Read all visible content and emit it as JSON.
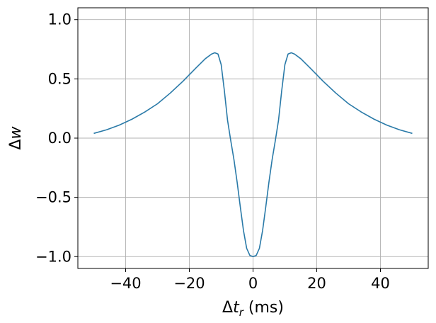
{
  "chart_data": {
    "type": "line",
    "title": "",
    "xlabel_parts": {
      "delta": "Δ",
      "var": "t",
      "sub": "r",
      "unit": " (ms)"
    },
    "ylabel_parts": {
      "delta": "Δ",
      "var": "w"
    },
    "xlim": [
      -55,
      55
    ],
    "ylim": [
      -1.1,
      1.1
    ],
    "xticks": [
      -40,
      -20,
      0,
      20,
      40
    ],
    "yticks": [
      -1.0,
      -0.5,
      0.0,
      0.5,
      1.0
    ],
    "xtick_labels": [
      "−40",
      "−20",
      "0",
      "20",
      "40"
    ],
    "ytick_labels": [
      "−1.0",
      "−0.5",
      "0.0",
      "0.5",
      "1.0"
    ],
    "grid": true,
    "series": [
      {
        "color": "#2a7aa8",
        "x": [
          -50,
          -46,
          -42,
          -38,
          -34,
          -30,
          -26,
          -22,
          -18,
          -15,
          -13,
          -12,
          -11,
          -10,
          -9,
          -8,
          -7,
          -6,
          -5,
          -4,
          -3,
          -2,
          -1,
          0,
          1,
          2,
          3,
          4,
          5,
          6,
          7,
          8,
          9,
          10,
          11,
          12,
          13,
          15,
          18,
          22,
          26,
          30,
          34,
          38,
          42,
          46,
          50
        ],
        "y": [
          0.04,
          0.07,
          0.11,
          0.16,
          0.22,
          0.29,
          0.38,
          0.48,
          0.59,
          0.67,
          0.71,
          0.72,
          0.71,
          0.62,
          0.4,
          0.15,
          -0.02,
          -0.18,
          -0.37,
          -0.58,
          -0.78,
          -0.93,
          -0.99,
          -1.0,
          -0.99,
          -0.93,
          -0.78,
          -0.58,
          -0.37,
          -0.18,
          -0.02,
          0.15,
          0.4,
          0.62,
          0.71,
          0.72,
          0.71,
          0.67,
          0.59,
          0.48,
          0.38,
          0.29,
          0.22,
          0.16,
          0.11,
          0.07,
          0.04
        ]
      }
    ]
  }
}
